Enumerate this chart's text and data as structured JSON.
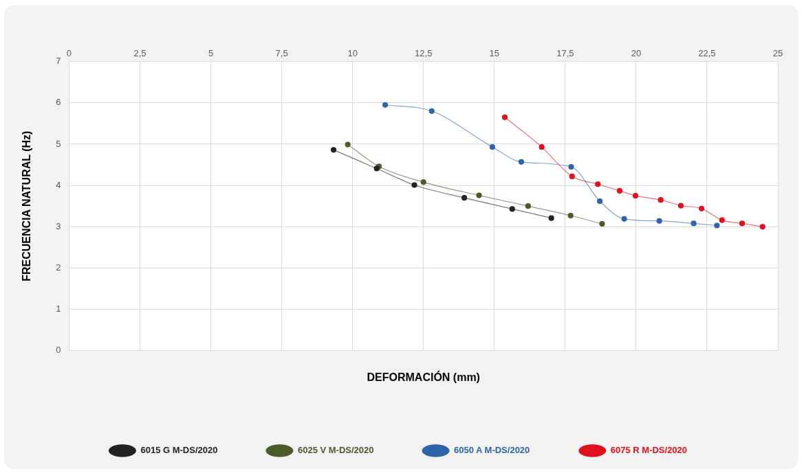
{
  "chart_data": {
    "type": "line",
    "xlabel": "DEFORMACIÓN (mm)",
    "ylabel": "FRECUENCIA NATURAL (Hz)",
    "xlim": [
      0,
      25
    ],
    "xticks": [
      0,
      {
        "value": 2.5,
        "label": "2,5"
      },
      5,
      {
        "value": 7.5,
        "label": "7,5"
      },
      10,
      {
        "value": 12.5,
        "label": "12,5"
      },
      15,
      {
        "value": 17.5,
        "label": "17,5"
      },
      20,
      {
        "value": 22.5,
        "label": "22,5"
      },
      25
    ],
    "ylim": [
      0,
      7
    ],
    "yticks": [
      0,
      1,
      2,
      3,
      4,
      5,
      6,
      7
    ],
    "grid": true,
    "legend": "bottom",
    "marker": "circle",
    "line_style": "solid",
    "series": [
      {
        "name": "6015 G M-DS/2020",
        "color": "#222222",
        "x": [
          9.33,
          10.85,
          12.18,
          13.94,
          15.63,
          17.01
        ],
        "values": [
          4.86,
          4.41,
          4.01,
          3.7,
          3.43,
          3.21
        ]
      },
      {
        "name": "6025 V M-DS/2020",
        "color": "#4a5a2a",
        "x": [
          9.83,
          10.93,
          12.5,
          14.46,
          16.19,
          17.69,
          18.8
        ],
        "values": [
          4.99,
          4.46,
          4.08,
          3.76,
          3.5,
          3.27,
          3.07
        ]
      },
      {
        "name": "6050 A M-DS/2020",
        "color": "#2e64a8",
        "x": [
          11.15,
          12.79,
          14.93,
          15.95,
          17.71,
          18.72,
          19.58,
          20.82,
          22.03,
          22.85
        ],
        "values": [
          5.95,
          5.8,
          4.93,
          4.57,
          4.45,
          3.62,
          3.19,
          3.14,
          3.08,
          3.03
        ]
      },
      {
        "name": "6075 R M-DS/2020",
        "color": "#e01020",
        "x": [
          15.37,
          16.67,
          17.74,
          18.65,
          19.42,
          19.98,
          20.87,
          21.58,
          22.31,
          23.03,
          23.74,
          24.46
        ],
        "values": [
          5.65,
          4.93,
          4.22,
          4.03,
          3.87,
          3.75,
          3.65,
          3.51,
          3.44,
          3.16,
          3.08,
          3.0
        ]
      }
    ]
  }
}
